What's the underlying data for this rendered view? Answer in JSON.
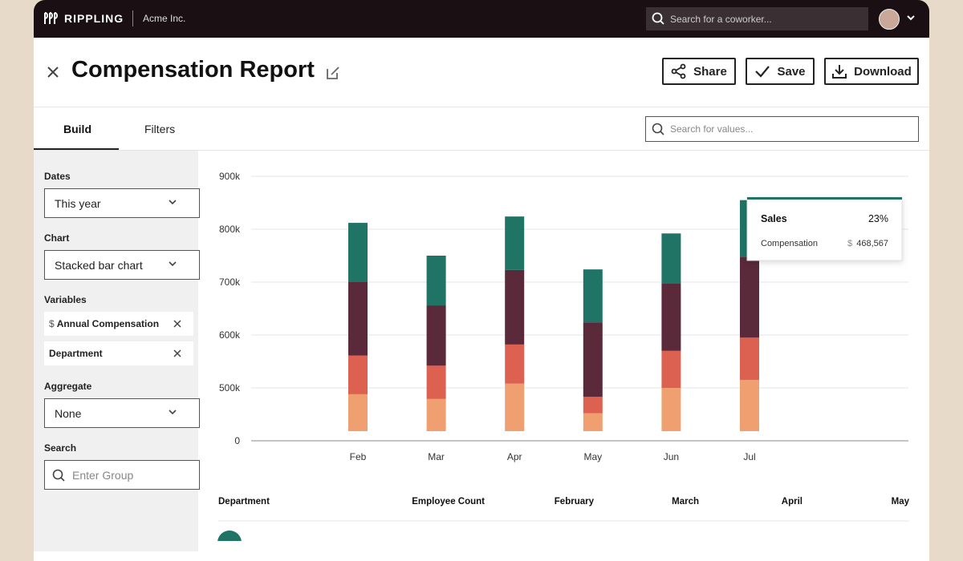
{
  "topbar": {
    "brand": "RIPPLING",
    "company": "Acme Inc.",
    "search_placeholder": "Search for a coworker..."
  },
  "header": {
    "title": "Compensation Report",
    "buttons": [
      "Share",
      "Save",
      "Download"
    ]
  },
  "tabs": [
    "Build",
    "Filters"
  ],
  "value_search_placeholder": "Search for values...",
  "sidebar": {
    "dates": {
      "label": "Dates",
      "value": "This year"
    },
    "chart": {
      "label": "Chart",
      "value": "Stacked bar chart"
    },
    "variables": {
      "label": "Variables",
      "chips": [
        {
          "prefix": "$",
          "text": "Annual Compensation"
        },
        {
          "text": "Department"
        }
      ]
    },
    "aggregate": {
      "label": "Aggregate",
      "value": "None"
    },
    "search": {
      "label": "Search",
      "placeholder": "Enter Group"
    }
  },
  "chart_data": {
    "type": "stacked_bar",
    "categories": [
      "Feb",
      "Mar",
      "Apr",
      "May",
      "Jun",
      "Jul"
    ],
    "series": [
      {
        "color": "#f0a070",
        "values": [
          488000,
          479000,
          508000,
          452000,
          500000,
          515000
        ]
      },
      {
        "color": "#dc6150",
        "values": [
          73000,
          63000,
          74000,
          31000,
          70000,
          80000
        ]
      },
      {
        "color": "#5a2a3a",
        "values": [
          139000,
          114000,
          141000,
          141000,
          128000,
          153000
        ]
      },
      {
        "color": "#1f7466",
        "values": [
          112000,
          94000,
          101000,
          100000,
          94000,
          107000
        ]
      }
    ],
    "ylim": [
      0,
      900000
    ],
    "y_axis_break": [
      0,
      400000
    ],
    "yticks": [
      0,
      {
        "value": 500000,
        "label": "500k"
      },
      {
        "value": 600000,
        "label": "600k"
      },
      {
        "value": 700000,
        "label": "700k"
      },
      {
        "value": 800000,
        "label": "800k"
      },
      {
        "value": 900000,
        "label": "900k"
      }
    ],
    "grid": true,
    "tooltip": {
      "title": "Sales",
      "share": "23%",
      "metric": "Compensation",
      "currency": "$",
      "amount": "468,567"
    }
  },
  "table": {
    "headers": [
      "Department",
      "Employee Count",
      "February",
      "March",
      "April",
      "May"
    ]
  }
}
